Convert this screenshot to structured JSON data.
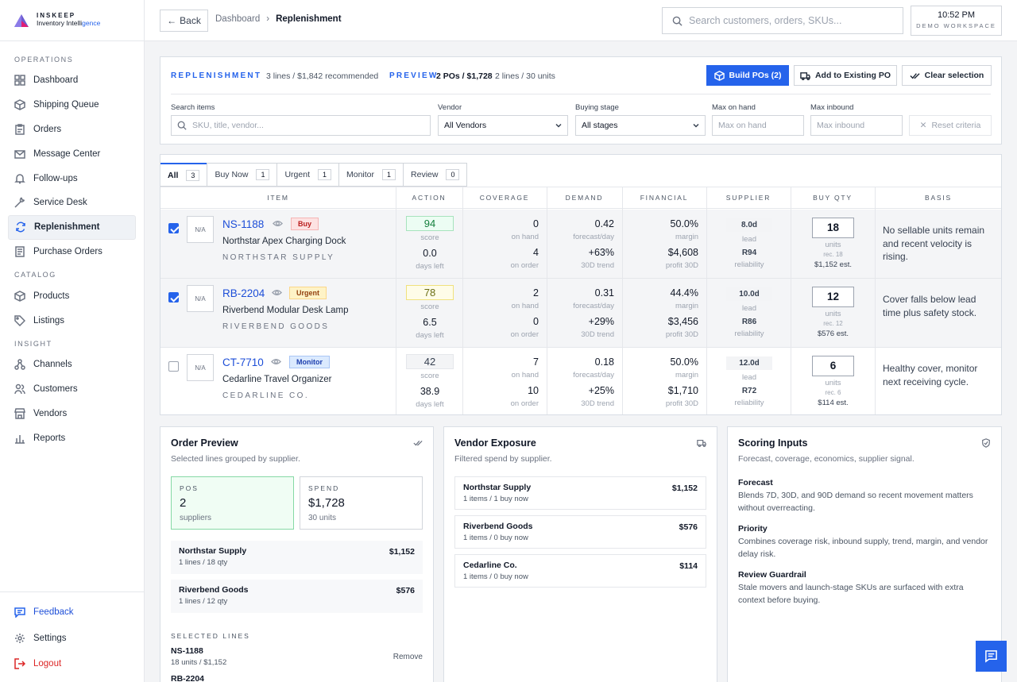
{
  "brand": {
    "name": "INSKEEP",
    "sub_a": "Inventory Intelli",
    "sub_b": "gence"
  },
  "sidebar": {
    "sections": [
      {
        "title": "OPERATIONS",
        "items": [
          "Dashboard",
          "Shipping Queue",
          "Orders",
          "Message Center",
          "Follow-ups",
          "Service Desk",
          "Replenishment",
          "Purchase Orders"
        ]
      },
      {
        "title": "CATALOG",
        "items": [
          "Products",
          "Listings"
        ]
      },
      {
        "title": "INSIGHT",
        "items": [
          "Channels",
          "Customers",
          "Vendors",
          "Reports"
        ]
      }
    ],
    "active": "Replenishment",
    "bottom": [
      "Feedback",
      "Settings",
      "Logout"
    ]
  },
  "topbar": {
    "back_label": "Back",
    "crumb_parent": "Dashboard",
    "crumb_sep": "›",
    "crumb_current": "Replenishment",
    "search_placeholder": "Search customers, orders, SKUs...",
    "time": "10:52 PM",
    "workspace": "DEMO WORKSPACE"
  },
  "controls": {
    "label": "REPLENISHMENT",
    "summary": "3 lines / $1,842 recommended",
    "preview_label": "PREVIEW",
    "preview_bold": "2 POs / $1,728",
    "preview_meta": "2 lines / 30 units",
    "build_btn": "Build POs (2)",
    "add_btn": "Add to Existing PO",
    "clear_btn": "Clear selection",
    "filters": {
      "search_label": "Search items",
      "search_placeholder": "SKU, title, vendor...",
      "vendor_label": "Vendor",
      "vendor_value": "All Vendors",
      "stage_label": "Buying stage",
      "stage_value": "All stages",
      "max_onhand_label": "Max on hand",
      "max_onhand_placeholder": "Max on hand",
      "max_inbound_label": "Max inbound",
      "max_inbound_placeholder": "Max inbound",
      "reset_label": "Reset criteria"
    }
  },
  "tabs": [
    {
      "label": "All",
      "count": "3"
    },
    {
      "label": "Buy Now",
      "count": "1"
    },
    {
      "label": "Urgent",
      "count": "1"
    },
    {
      "label": "Monitor",
      "count": "1"
    },
    {
      "label": "Review",
      "count": "0"
    }
  ],
  "columns": [
    "ITEM",
    "ACTION",
    "COVERAGE",
    "DEMAND",
    "FINANCIAL",
    "SUPPLIER",
    "BUY QTY",
    "BASIS"
  ],
  "rows": [
    {
      "checked": true,
      "thumb": "N/A",
      "sku": "NS-1188",
      "badge": "Buy",
      "name": "Northstar Apex Charging Dock",
      "vendor": "NORTHSTAR SUPPLY",
      "score": "94",
      "score_label": "score",
      "days": "0.0",
      "days_label": "days left",
      "on_hand": "0",
      "on_hand_label": "on hand",
      "on_order": "4",
      "on_order_label": "on order",
      "forecast": "0.42",
      "forecast_label": "forecast/day",
      "trend": "+63%",
      "trend_label": "30D trend",
      "margin": "50.0%",
      "margin_label": "margin",
      "profit": "$4,608",
      "profit_label": "profit 30D",
      "lead": "8.0d",
      "lead_label": "lead",
      "reliability": "R94",
      "reliability_label": "reliability",
      "qty": "18",
      "units_label": "units",
      "rec": "rec. 18",
      "est": "$1,152 est.",
      "basis": "No sellable units remain and recent velocity is rising."
    },
    {
      "checked": true,
      "thumb": "N/A",
      "sku": "RB-2204",
      "badge": "Urgent",
      "name": "Riverbend Modular Desk Lamp",
      "vendor": "RIVERBEND GOODS",
      "score": "78",
      "score_label": "score",
      "days": "6.5",
      "days_label": "days left",
      "on_hand": "2",
      "on_hand_label": "on hand",
      "on_order": "0",
      "on_order_label": "on order",
      "forecast": "0.31",
      "forecast_label": "forecast/day",
      "trend": "+29%",
      "trend_label": "30D trend",
      "margin": "44.4%",
      "margin_label": "margin",
      "profit": "$3,456",
      "profit_label": "profit 30D",
      "lead": "10.0d",
      "lead_label": "lead",
      "reliability": "R86",
      "reliability_label": "reliability",
      "qty": "12",
      "units_label": "units",
      "rec": "rec. 12",
      "est": "$576 est.",
      "basis": "Cover falls below lead time plus safety stock."
    },
    {
      "checked": false,
      "thumb": "N/A",
      "sku": "CT-7710",
      "badge": "Monitor",
      "name": "Cedarline Travel Organizer",
      "vendor": "CEDARLINE CO.",
      "score": "42",
      "score_label": "score",
      "days": "38.9",
      "days_label": "days left",
      "on_hand": "7",
      "on_hand_label": "on hand",
      "on_order": "10",
      "on_order_label": "on order",
      "forecast": "0.18",
      "forecast_label": "forecast/day",
      "trend": "+25%",
      "trend_label": "30D trend",
      "margin": "50.0%",
      "margin_label": "margin",
      "profit": "$1,710",
      "profit_label": "profit 30D",
      "lead": "12.0d",
      "lead_label": "lead",
      "reliability": "R72",
      "reliability_label": "reliability",
      "qty": "6",
      "units_label": "units",
      "rec": "rec. 6",
      "est": "$114 est.",
      "basis": "Healthy cover, monitor next receiving cycle."
    }
  ],
  "order_preview": {
    "title": "Order Preview",
    "subtitle": "Selected lines grouped by supplier.",
    "pos_label": "POS",
    "pos_value": "2",
    "pos_desc": "suppliers",
    "spend_label": "SPEND",
    "spend_value": "$1,728",
    "spend_desc": "30 units",
    "groups": [
      {
        "name": "Northstar Supply",
        "meta": "1 lines / 18 qty",
        "amount": "$1,152"
      },
      {
        "name": "Riverbend Goods",
        "meta": "1 lines / 12 qty",
        "amount": "$576"
      }
    ],
    "selected_label": "SELECTED LINES",
    "selected": [
      {
        "sku": "NS-1188",
        "meta": "18 units / $1,152",
        "action": "Remove"
      },
      {
        "sku": "RB-2204",
        "meta": "",
        "action": ""
      }
    ]
  },
  "vendor_exposure": {
    "title": "Vendor Exposure",
    "subtitle": "Filtered spend by supplier.",
    "vendors": [
      {
        "name": "Northstar Supply",
        "meta": "1 items / 1 buy now",
        "amount": "$1,152"
      },
      {
        "name": "Riverbend Goods",
        "meta": "1 items / 0 buy now",
        "amount": "$576"
      },
      {
        "name": "Cedarline Co.",
        "meta": "1 items / 0 buy now",
        "amount": "$114"
      }
    ]
  },
  "scoring_inputs": {
    "title": "Scoring Inputs",
    "subtitle": "Forecast, coverage, economics, supplier signal.",
    "items": [
      {
        "heading": "Forecast",
        "body": "Blends 7D, 30D, and 90D demand so recent movement matters without overreacting."
      },
      {
        "heading": "Priority",
        "body": "Combines coverage risk, inbound supply, trend, margin, and vendor delay risk."
      },
      {
        "heading": "Review Guardrail",
        "body": "Stale movers and launch-stage SKUs are surfaced with extra context before buying."
      }
    ]
  },
  "colors": {
    "accent": "#2563eb",
    "danger": "#dc2626"
  }
}
